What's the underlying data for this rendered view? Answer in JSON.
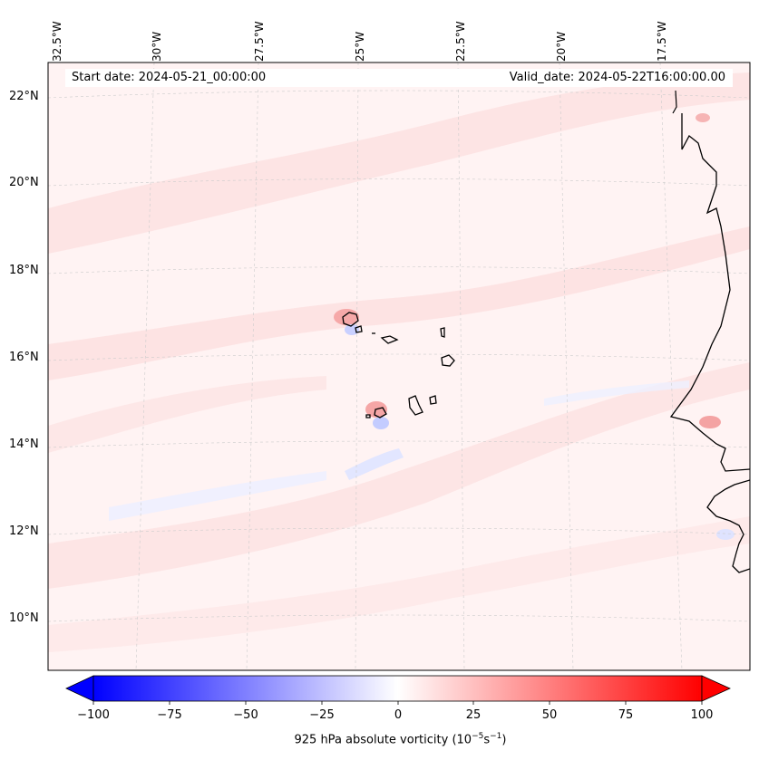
{
  "banner": {
    "start_date": "Start date: 2024-05-21_00:00:00",
    "valid_date": "Valid_date: 2024-05-22T16:00:00.00"
  },
  "longitude_labels": [
    "32.5°W",
    "30°W",
    "27.5°W",
    "25°W",
    "22.5°W",
    "20°W",
    "17.5°W"
  ],
  "latitude_labels": [
    "22°N",
    "20°N",
    "18°N",
    "16°N",
    "14°N",
    "12°N",
    "10°N"
  ],
  "colorbar": {
    "ticks": [
      "−100",
      "−75",
      "−50",
      "−25",
      "0",
      "25",
      "50",
      "75",
      "100"
    ],
    "label": "925 hPa absolute vorticity (10",
    "label_exp1": "−5",
    "label_mid": "s",
    "label_exp2": "−1",
    "label_end": ")",
    "colors": {
      "negative": "#0000ff",
      "zero": "#ffffff",
      "positive": "#ff0000"
    }
  },
  "map_colors": {
    "background": "#fff5f5",
    "coastline": "#000000",
    "gridline": "#cccccc"
  }
}
